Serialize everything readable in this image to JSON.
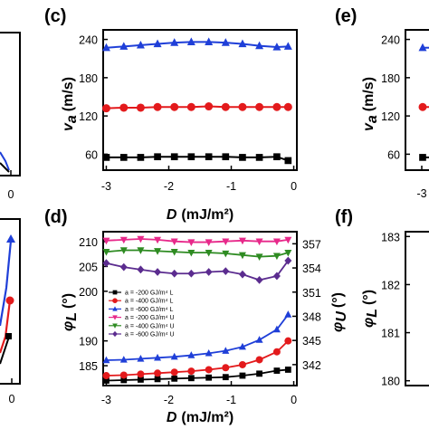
{
  "panels": [
    {
      "label": "(c)"
    },
    {
      "label": "(d)"
    },
    {
      "label": "(e)"
    },
    {
      "label": "(f)"
    }
  ],
  "edge_ticks": {
    "left_top": "0",
    "left_bottom": "0",
    "right_e_x": "-3"
  },
  "chart_data": [
    {
      "id": "c",
      "type": "line",
      "ylabel_main": "v",
      "ylabel_sub": "a",
      "ylabel_unit": "(m/s)",
      "xlabel_main": "D",
      "xlabel_unit": "(mJ/m²)",
      "xlim": [
        -3.05,
        0.05
      ],
      "ylim": [
        35,
        255
      ],
      "xticks": [
        -3,
        -2,
        -1,
        0
      ],
      "yticks": [
        60,
        120,
        180,
        240
      ],
      "x": [
        -3.0,
        -2.72,
        -2.45,
        -2.18,
        -1.91,
        -1.64,
        -1.36,
        -1.09,
        -0.82,
        -0.55,
        -0.27,
        -0.09
      ],
      "series": [
        {
          "color": "#1f3fd8",
          "marker": "triangle",
          "values": [
            227,
            229,
            231,
            233,
            235,
            236,
            236,
            235,
            233,
            230,
            228,
            229
          ]
        },
        {
          "color": "#e31a1c",
          "marker": "circle",
          "values": [
            132,
            133,
            133,
            134,
            134,
            134,
            135,
            134,
            134,
            134,
            134,
            134
          ]
        },
        {
          "color": "#000000",
          "marker": "square",
          "values": [
            55,
            55,
            55,
            56,
            56,
            56,
            56,
            56,
            55,
            55,
            56,
            50
          ]
        }
      ]
    },
    {
      "id": "d",
      "type": "line",
      "ylabel_left_main": "φ",
      "ylabel_left_sub": "L",
      "ylabel_left_unit": "(°)",
      "ylabel_right_main": "φ",
      "ylabel_right_sub": "U",
      "ylabel_right_unit": "(°)",
      "xlabel_main": "D",
      "xlabel_unit": "(mJ/m²)",
      "xlim": [
        -3.05,
        0.05
      ],
      "ylim_left": [
        181,
        212
      ],
      "ylim_right": [
        339.4,
        358.5
      ],
      "xticks": [
        -3,
        -2,
        -1,
        0
      ],
      "yticks_left": [
        185,
        190,
        200,
        205,
        210
      ],
      "yticks_right": [
        342,
        345,
        348,
        351,
        354,
        357
      ],
      "x": [
        -3.0,
        -2.72,
        -2.45,
        -2.18,
        -1.91,
        -1.64,
        -1.36,
        -1.09,
        -0.82,
        -0.55,
        -0.27,
        -0.09
      ],
      "legend": [
        {
          "text": "a = -200 GJ/m⁴  L",
          "color": "#000000",
          "marker": "square"
        },
        {
          "text": "a = -400 GJ/m⁴  L",
          "color": "#e31a1c",
          "marker": "circle"
        },
        {
          "text": "a = -600 GJ/m⁴  L",
          "color": "#1f3fd8",
          "marker": "triangle"
        },
        {
          "text": "a = -200 GJ/m⁴  U",
          "color": "#e7298a",
          "marker": "triangle-down"
        },
        {
          "text": "a = -400 GJ/m⁴  U",
          "color": "#2e8b22",
          "marker": "triangle-down"
        },
        {
          "text": "a = -600 GJ/m⁴  U",
          "color": "#5b2c8f",
          "marker": "diamond"
        }
      ],
      "series": [
        {
          "axis": "left",
          "color": "#000000",
          "marker": "square",
          "values": [
            182.0,
            182.1,
            182.2,
            182.3,
            182.4,
            182.5,
            182.6,
            182.7,
            183.0,
            183.4,
            184.0,
            184.2
          ]
        },
        {
          "axis": "left",
          "color": "#e31a1c",
          "marker": "circle",
          "values": [
            183.0,
            183.1,
            183.3,
            183.5,
            183.7,
            183.9,
            184.2,
            184.6,
            185.2,
            186.2,
            187.8,
            190.0
          ]
        },
        {
          "axis": "left",
          "color": "#1f3fd8",
          "marker": "triangle",
          "values": [
            186.1,
            186.2,
            186.4,
            186.6,
            186.8,
            187.1,
            187.5,
            188.0,
            188.8,
            190.2,
            192.3,
            195.3
          ]
        },
        {
          "axis": "right",
          "color": "#e7298a",
          "marker": "triangle-down",
          "values": [
            357.4,
            357.5,
            357.6,
            357.5,
            357.3,
            357.2,
            357.2,
            357.3,
            357.4,
            357.3,
            357.3,
            357.5
          ]
        },
        {
          "axis": "right",
          "color": "#2e8b22",
          "marker": "triangle-down",
          "values": [
            356.0,
            356.2,
            356.2,
            356.1,
            356.0,
            355.9,
            355.9,
            355.8,
            355.6,
            355.4,
            355.5,
            355.9
          ]
        },
        {
          "axis": "right",
          "color": "#5b2c8f",
          "marker": "diamond",
          "values": [
            354.6,
            354.1,
            353.8,
            353.5,
            353.3,
            353.3,
            353.5,
            353.6,
            353.2,
            352.5,
            353.0,
            354.9
          ]
        }
      ]
    },
    {
      "id": "e",
      "type": "line",
      "ylabel_main": "v",
      "ylabel_sub": "a",
      "ylabel_unit": "(m/s)",
      "ylim": [
        35,
        255
      ],
      "yticks": [
        60,
        120,
        180,
        240
      ],
      "series": [
        {
          "color": "#1f3fd8",
          "marker": "triangle",
          "values": [
            227
          ]
        },
        {
          "color": "#e31a1c",
          "marker": "circle",
          "values": [
            134
          ]
        },
        {
          "color": "#000000",
          "marker": "square",
          "values": [
            55
          ]
        }
      ]
    },
    {
      "id": "f",
      "type": "line",
      "ylabel_main": "φ",
      "ylabel_sub": "L",
      "ylabel_unit": "(°)",
      "ylim": [
        179.9,
        183.1
      ],
      "yticks": [
        180,
        181,
        182,
        183
      ],
      "series": []
    }
  ]
}
